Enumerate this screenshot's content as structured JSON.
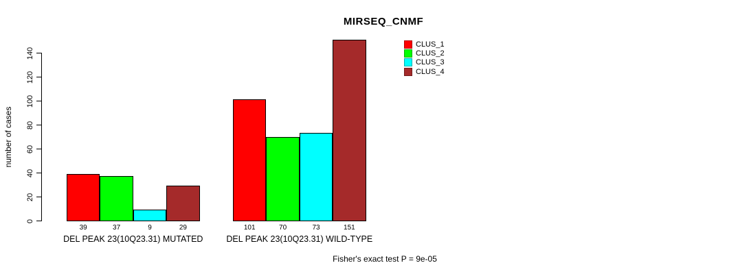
{
  "chart_data": {
    "type": "bar",
    "title": "MIRSEQ_CNMF",
    "xlabel": "",
    "ylabel": "number of cases",
    "ylim": [
      0,
      151
    ],
    "yticks": [
      0,
      20,
      40,
      60,
      80,
      100,
      120,
      140
    ],
    "grid": false,
    "legend_position": "top-right",
    "series": [
      {
        "name": "CLUS_1",
        "color": "#FF0000"
      },
      {
        "name": "CLUS_2",
        "color": "#00FF00"
      },
      {
        "name": "CLUS_3",
        "color": "#00FFFF"
      },
      {
        "name": "CLUS_4",
        "color": "#A52A2A"
      }
    ],
    "groups": [
      {
        "label": "DEL PEAK 23(10Q23.31) MUTATED",
        "values": [
          39,
          37,
          9,
          29
        ]
      },
      {
        "label": "DEL PEAK 23(10Q23.31) WILD-TYPE",
        "values": [
          101,
          70,
          73,
          151
        ]
      }
    ],
    "bar_value_labels_shown": true,
    "annotation": "Fisher's exact test P = 9e-05"
  }
}
